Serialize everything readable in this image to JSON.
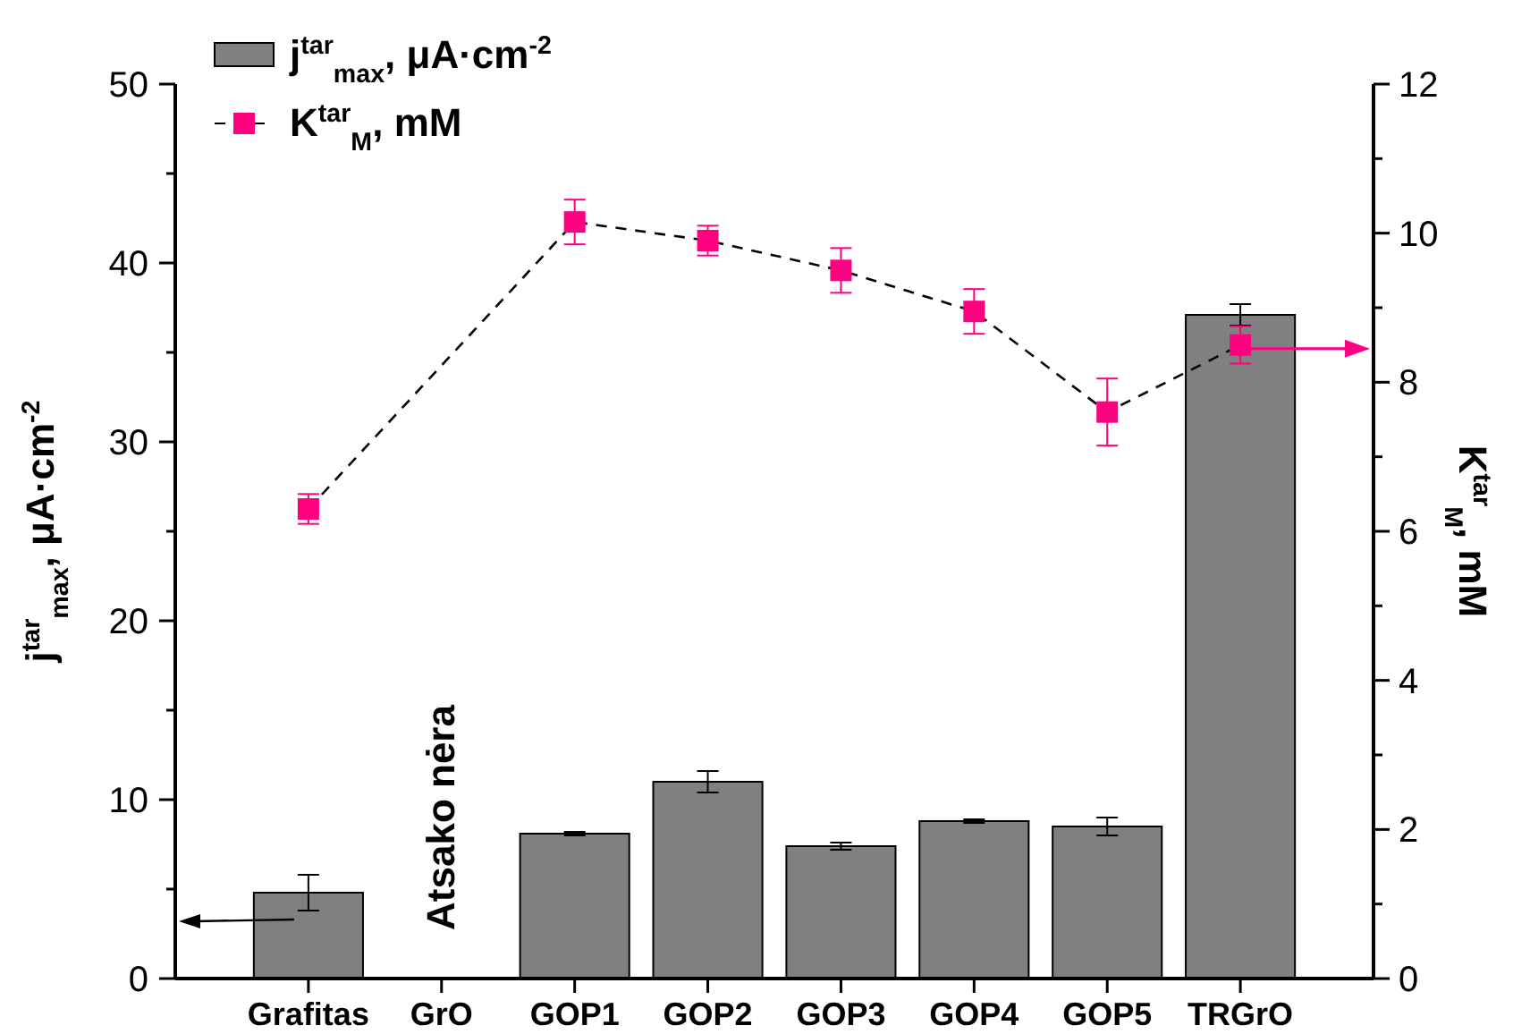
{
  "chart_data": {
    "type": "bar",
    "ylabel": "j$^{tar}$$_{max}$, μA·cm$^{-2}$",
    "y2label": "K$^{tar}$$_{M}$, mM",
    "categories": [
      "Grafitas",
      "GrO",
      "GOP1",
      "GOP2",
      "GOP3",
      "GOP4",
      "GOP5",
      "TRGrO"
    ],
    "series": [
      {
        "name": "j$^{tar}$$_{max}$, μA·cm$^{-2}$",
        "color": "#808080",
        "values": [
          4.8,
          null,
          8.1,
          11.0,
          7.4,
          8.8,
          8.5,
          37.1
        ],
        "errors": [
          1.0,
          null,
          0.1,
          0.6,
          0.2,
          0.1,
          0.5,
          0.6
        ]
      },
      {
        "name": "K$^{tar}$$_{M}$, mM",
        "type": "line",
        "axis": "y2",
        "color": "#ff0080",
        "marker": "square",
        "line_style": "dashed",
        "values": [
          6.3,
          null,
          10.15,
          9.9,
          9.5,
          8.95,
          7.6,
          8.5
        ],
        "errors": [
          0.2,
          null,
          0.3,
          0.2,
          0.3,
          0.3,
          0.45,
          0.25
        ]
      }
    ],
    "ylim": [
      0,
      50
    ],
    "yticks": [
      0,
      {
        "value": 5,
        "label": null
      },
      10,
      {
        "value": 15,
        "label": null
      },
      20,
      {
        "value": 25,
        "label": null
      },
      30,
      {
        "value": 35,
        "label": null
      },
      40,
      {
        "value": 45,
        "label": null
      },
      50
    ],
    "y2lim": [
      0,
      12
    ],
    "y2ticks": [
      0,
      {
        "value": 1,
        "label": null
      },
      2,
      {
        "value": 3,
        "label": null
      },
      4,
      {
        "value": 5,
        "label": null
      },
      6,
      {
        "value": 7,
        "label": null
      },
      8,
      {
        "value": 9,
        "label": null
      },
      10,
      {
        "value": 11,
        "label": null
      },
      12
    ],
    "annotations": [
      "Atsako nėra"
    ],
    "legend": "top left",
    "grid": false
  }
}
